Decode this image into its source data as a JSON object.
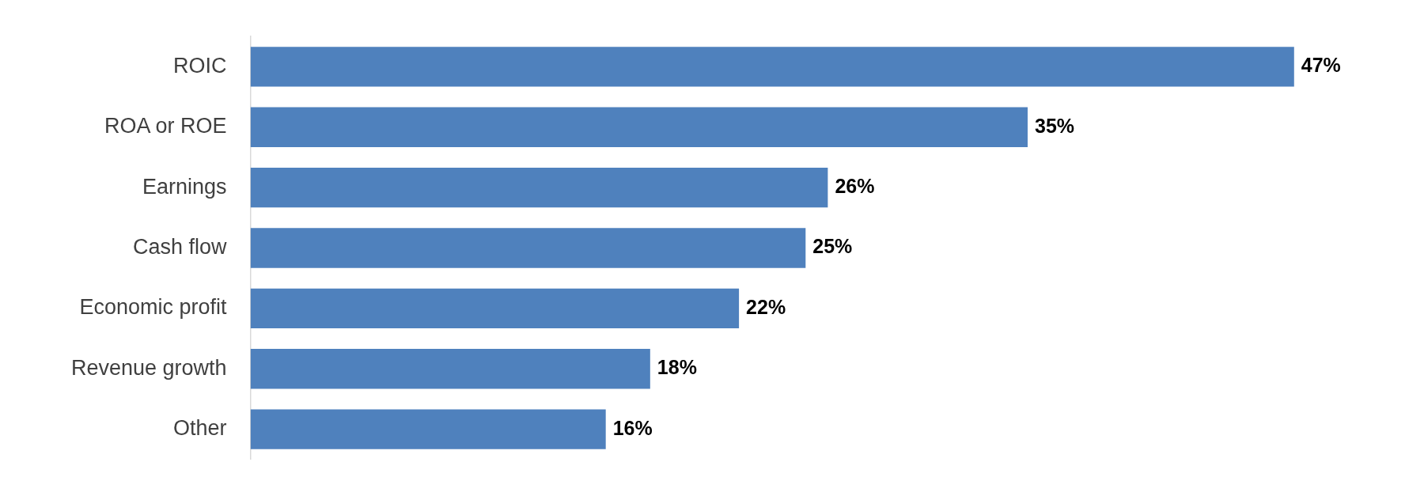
{
  "chart_data": {
    "type": "bar",
    "orientation": "horizontal",
    "categories": [
      "ROIC",
      "ROA or ROE",
      "Earnings",
      "Cash flow",
      "Economic profit",
      "Revenue growth",
      "Other"
    ],
    "values": [
      47,
      35,
      26,
      25,
      22,
      18,
      16
    ],
    "color": "#4f81bd",
    "value_labels": [
      "47%",
      "35%",
      "26%",
      "25%",
      "22%",
      "18%",
      "16%"
    ],
    "legend": false
  }
}
